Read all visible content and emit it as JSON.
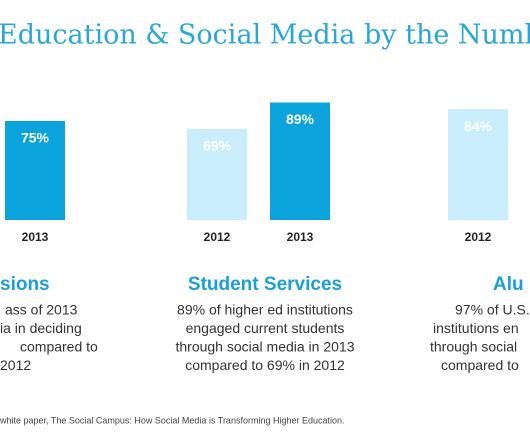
{
  "title": "Education & Social Media by the Numb",
  "source": "white paper, The Social Campus: How Social Media is Transforming Higher Education.",
  "chart_data": [
    {
      "type": "bar",
      "title": "sions",
      "categories": [
        "2013"
      ],
      "values": [
        75
      ],
      "value_labels": [
        "75%"
      ],
      "colors": [
        "#0aa3dc"
      ],
      "ylim": [
        0,
        100
      ],
      "description": [
        "ass of 2013",
        "ia in deciding",
        "compared to",
        "2012"
      ]
    },
    {
      "type": "bar",
      "title": "Student Services",
      "categories": [
        "2012",
        "2013"
      ],
      "values": [
        69,
        89
      ],
      "value_labels": [
        "69%",
        "89%"
      ],
      "colors": [
        "#c9edfa",
        "#0aa3dc"
      ],
      "ylim": [
        0,
        100
      ],
      "description": [
        "89% of higher ed institutions",
        "engaged current students",
        "through social media in 2013",
        "compared to 69% in 2012"
      ]
    },
    {
      "type": "bar",
      "title": "Alu",
      "categories": [
        "2012"
      ],
      "values": [
        84
      ],
      "value_labels": [
        "84%"
      ],
      "colors": [
        "#c9edfa"
      ],
      "ylim": [
        0,
        100
      ],
      "description": [
        "97% of U.S.",
        "institutions en",
        "through social",
        "compared to"
      ]
    }
  ]
}
